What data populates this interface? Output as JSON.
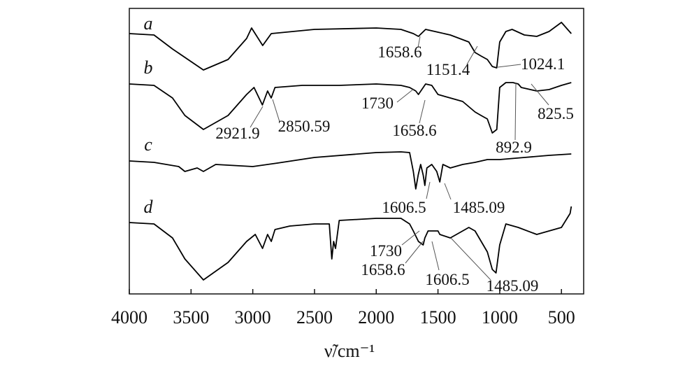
{
  "chart_data": {
    "type": "line",
    "x_label": "ν̃/cm⁻¹",
    "xlim": [
      4000,
      320
    ],
    "xticks": [
      4000,
      3500,
      3000,
      2500,
      2000,
      1500,
      1000,
      500
    ],
    "ylim": [
      0,
      408
    ],
    "series": [
      {
        "name": "a",
        "color": "#000000",
        "x": [
          4000,
          3800,
          3650,
          3400,
          3200,
          3050,
          3010,
          2920,
          2850,
          2500,
          2000,
          1800,
          1700,
          1658.6,
          1600,
          1500,
          1400,
          1250,
          1200,
          1151.4,
          1100,
          1060,
          1024.1,
          1000,
          950,
          900,
          800,
          700,
          600,
          500,
          450,
          420
        ],
        "values": [
          372,
          370,
          350,
          320,
          335,
          365,
          380,
          355,
          372,
          378,
          380,
          378,
          372,
          368,
          378,
          374,
          370,
          360,
          345,
          340,
          335,
          325,
          323,
          360,
          375,
          378,
          370,
          368,
          375,
          388,
          378,
          372
        ]
      },
      {
        "name": "b",
        "color": "#000000",
        "x": [
          4000,
          3800,
          3650,
          3550,
          3400,
          3200,
          3050,
          2990,
          2921.9,
          2880,
          2850.59,
          2820,
          2600,
          2300,
          2000,
          1800,
          1730,
          1680,
          1658.6,
          1600,
          1550,
          1500,
          1400,
          1300,
          1200,
          1151,
          1100,
          1060,
          1024,
          1000,
          950,
          892.9,
          850,
          825.5,
          700,
          600,
          500,
          420
        ],
        "values": [
          300,
          298,
          280,
          255,
          235,
          255,
          285,
          295,
          270,
          290,
          280,
          295,
          298,
          298,
          300,
          298,
          295,
          290,
          285,
          300,
          298,
          285,
          280,
          275,
          260,
          255,
          250,
          230,
          235,
          295,
          302,
          302,
          300,
          295,
          290,
          292,
          298,
          302
        ]
      },
      {
        "name": "c",
        "color": "#000000",
        "x": [
          4000,
          3800,
          3600,
          3550,
          3450,
          3400,
          3300,
          3000,
          2800,
          2500,
          2000,
          1800,
          1730,
          1700,
          1680,
          1660,
          1640,
          1620,
          1606.5,
          1590,
          1550,
          1510,
          1485.09,
          1460,
          1400,
          1300,
          1200,
          1100,
          1000,
          800,
          600,
          420
        ],
        "values": [
          190,
          188,
          182,
          175,
          180,
          175,
          185,
          182,
          187,
          195,
          202,
          203,
          202,
          175,
          150,
          170,
          185,
          170,
          155,
          180,
          185,
          175,
          160,
          185,
          180,
          185,
          188,
          192,
          192,
          195,
          198,
          200
        ]
      },
      {
        "name": "d",
        "color": "#000000",
        "x": [
          4000,
          3800,
          3650,
          3550,
          3400,
          3200,
          3050,
          2980,
          2921,
          2880,
          2850,
          2820,
          2700,
          2500,
          2380,
          2360,
          2345,
          2330,
          2300,
          2000,
          1800,
          1730,
          1700,
          1658.6,
          1620,
          1606.5,
          1580,
          1500,
          1485.09,
          1400,
          1300,
          1250,
          1200,
          1150,
          1100,
          1060,
          1030,
          1000,
          950,
          850,
          700,
          500,
          430,
          420
        ],
        "values": [
          102,
          100,
          80,
          50,
          20,
          45,
          75,
          85,
          65,
          85,
          75,
          92,
          97,
          100,
          100,
          50,
          75,
          65,
          105,
          108,
          108,
          100,
          90,
          75,
          70,
          80,
          90,
          90,
          85,
          80,
          90,
          95,
          90,
          75,
          60,
          35,
          30,
          70,
          100,
          95,
          85,
          95,
          115,
          125
        ]
      }
    ],
    "annotations": [
      "1658.6",
      "1151.4",
      "1024.1",
      "2921.9",
      "2850.59",
      "1730",
      "1658.6",
      "892.9",
      "825.5",
      "1606.5",
      "1485.09",
      "1730",
      "1658.6",
      "1606.5",
      "1485.09"
    ]
  }
}
